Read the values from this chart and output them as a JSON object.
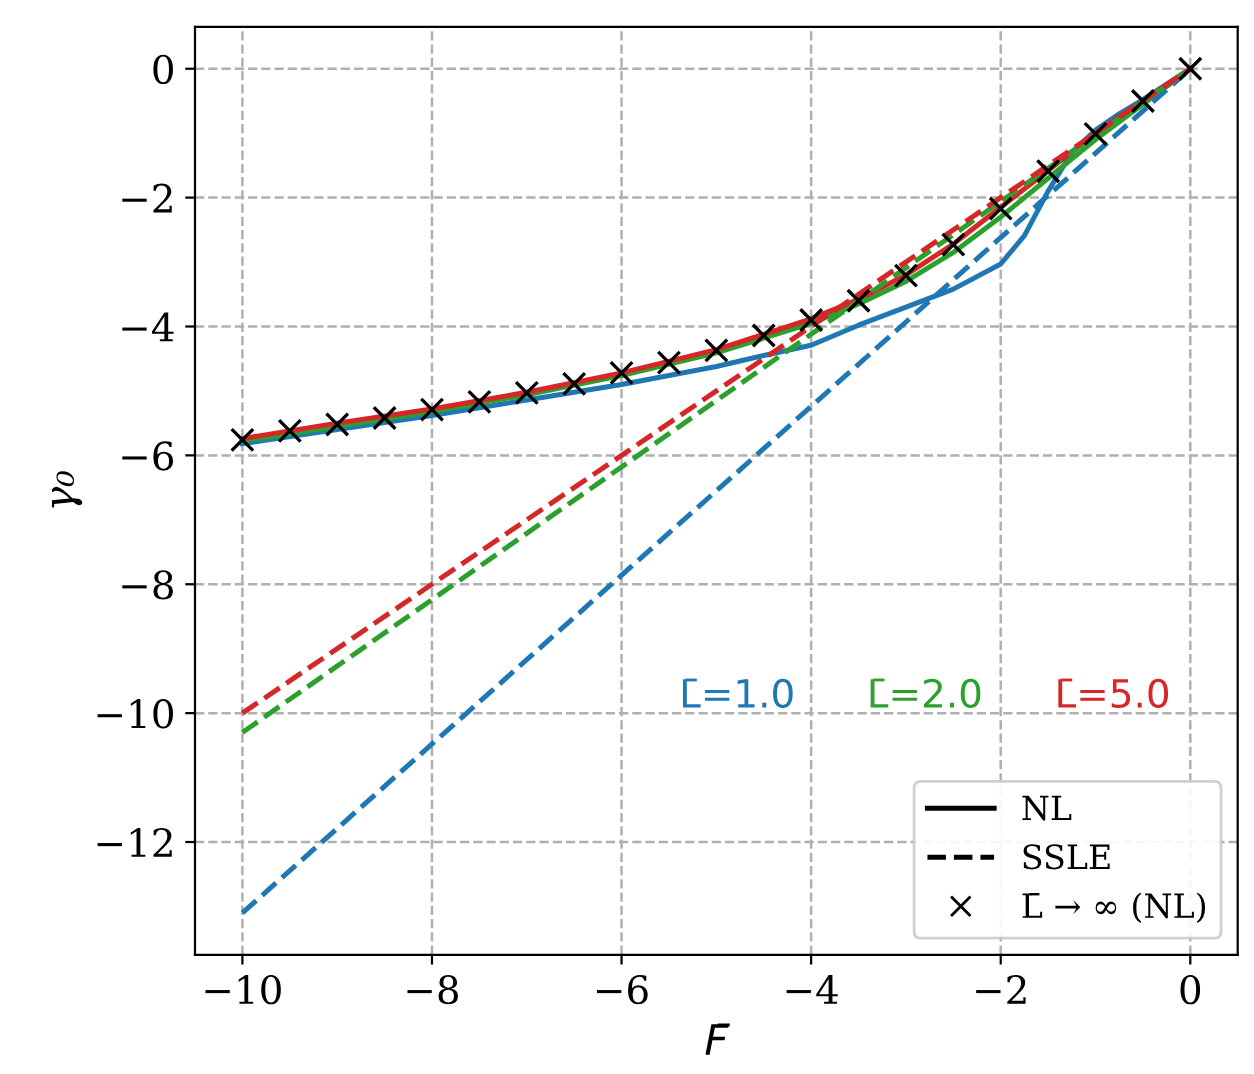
{
  "chart_data": {
    "type": "line",
    "xlabel": "F̄",
    "ylabel": "γ₀",
    "xlim": [
      -10.5,
      0.5
    ],
    "ylim": [
      -13.75,
      0.65
    ],
    "xticks": [
      -10,
      -8,
      -6,
      -4,
      -2,
      0
    ],
    "yticks": [
      -12,
      -10,
      -8,
      -6,
      -4,
      -2,
      0
    ],
    "grid": true,
    "legend": "bottom right",
    "annotations": [
      "NL",
      "SSLE"
    ],
    "series": [
      {
        "name": "L̄=1.0",
        "color": "#1f77b4",
        "line_style": "solid",
        "x": [
          -10,
          -9,
          -8,
          -7,
          -6,
          -5,
          -4.5,
          -4,
          -3.5,
          -3,
          -2.5,
          -2,
          -1.75,
          -1.5,
          -1.25,
          -1,
          -0.75,
          -0.5,
          -0.25,
          0
        ],
        "values": [
          -5.82,
          -5.6,
          -5.38,
          -5.14,
          -4.9,
          -4.62,
          -4.45,
          -4.29,
          -3.98,
          -3.7,
          -3.42,
          -3.03,
          -2.59,
          -1.9,
          -1.3,
          -0.95,
          -0.7,
          -0.48,
          -0.24,
          0
        ]
      },
      {
        "color": "#2ca02c",
        "line_style": "solid",
        "x": [
          -10,
          -9,
          -8,
          -7,
          -6,
          -5,
          -4,
          -3.5,
          -3,
          -2.5,
          -2,
          -1.5,
          -1,
          -0.5,
          0
        ],
        "values": [
          -5.78,
          -5.55,
          -5.32,
          -5.06,
          -4.76,
          -4.41,
          -3.95,
          -3.65,
          -3.3,
          -2.85,
          -2.3,
          -1.7,
          -1.1,
          -0.55,
          0
        ]
      },
      {
        "color": "#d62728",
        "line_style": "solid",
        "x": [
          -10,
          -9,
          -8,
          -7,
          -6,
          -5,
          -4,
          -3.5,
          -3,
          -2.5,
          -2,
          -1.5,
          -1,
          -0.5,
          0
        ],
        "values": [
          -5.74,
          -5.5,
          -5.28,
          -5.02,
          -4.72,
          -4.36,
          -3.88,
          -3.58,
          -3.2,
          -2.72,
          -2.15,
          -1.58,
          -1.0,
          -0.5,
          0
        ]
      },
      {
        "color": "#1f77b4",
        "line_style": "dashed",
        "x": [
          -10,
          0
        ],
        "values": [
          -13.1,
          0
        ]
      },
      {
        "name": "L̄=2.0",
        "color": "#2ca02c",
        "line_style": "dashed",
        "x": [
          -10,
          0
        ],
        "values": [
          -10.3,
          0
        ]
      },
      {
        "name": "L̄=5.0",
        "color": "#d62728",
        "line_style": "dashed",
        "x": [
          -10,
          0
        ],
        "values": [
          -10.0,
          0
        ]
      },
      {
        "name": "L̄ → ∞ (NL)",
        "type": "scatter",
        "marker": "cross",
        "color": "#000000",
        "x": [
          -10,
          -9.5,
          -9,
          -8.5,
          -8,
          -7.5,
          -7,
          -6.5,
          -6,
          -5.5,
          -5,
          -4.5,
          -4,
          -3.5,
          -3,
          -2.5,
          -2,
          -1.5,
          -1,
          -0.5,
          0
        ],
        "values": [
          -5.76,
          -5.62,
          -5.52,
          -5.42,
          -5.29,
          -5.17,
          -5.03,
          -4.89,
          -4.72,
          -4.56,
          -4.37,
          -4.14,
          -3.9,
          -3.6,
          -3.21,
          -2.73,
          -2.17,
          -1.59,
          -1.01,
          -0.5,
          0
        ]
      }
    ]
  }
}
